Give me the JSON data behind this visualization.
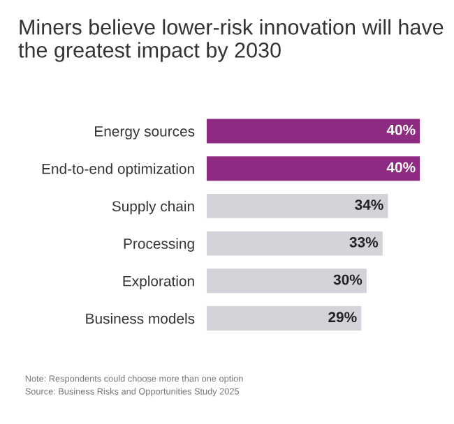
{
  "chart_data": {
    "type": "bar",
    "orientation": "horizontal",
    "title": "Miners believe lower-risk innovation will have the greatest impact by 2030",
    "categories": [
      "Energy sources",
      "End-to-end optimization",
      "Supply chain",
      "Processing",
      "Exploration",
      "Business models"
    ],
    "values": [
      40,
      40,
      34,
      33,
      30,
      29
    ],
    "colors": [
      "#8e2a82",
      "#8e2a82",
      "#d3d3da",
      "#d3d3da",
      "#d3d3da",
      "#d3d3da"
    ],
    "value_labels": [
      "40%",
      "40%",
      "34%",
      "33%",
      "30%",
      "29%"
    ],
    "grid": false,
    "legend": false,
    "annotations": [
      "Note: Respondents could choose more than one option",
      "Source: Business Risks and Opportunities Study 2025"
    ]
  }
}
